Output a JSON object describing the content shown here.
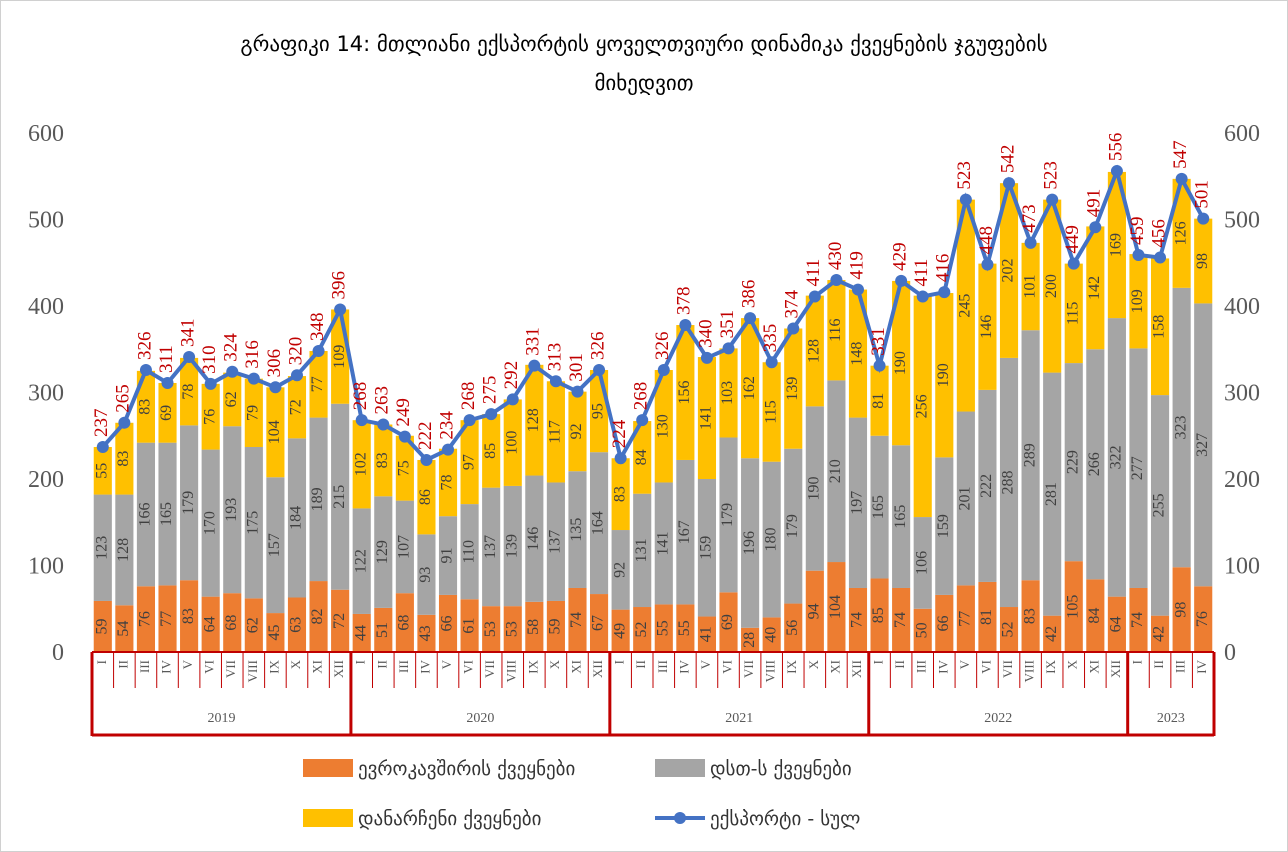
{
  "chart_data": {
    "type": "stacked-bar-line",
    "title": "გრაფიკი 14: მთლიანი ექსპორტის ყოველთვიური დინამიკა ქვეყნების ჯგუფების მიხედვით",
    "groups": [
      {
        "name": "2019",
        "categories": [
          "I",
          "II",
          "III",
          "IV",
          "V",
          "VI",
          "VII",
          "VIII",
          "IX",
          "X",
          "XI",
          "XII"
        ]
      },
      {
        "name": "2020",
        "categories": [
          "I",
          "II",
          "III",
          "IV",
          "V",
          "VI",
          "VII",
          "VIII",
          "IX",
          "X",
          "XI",
          "XII"
        ]
      },
      {
        "name": "2021",
        "categories": [
          "I",
          "II",
          "III",
          "IV",
          "V",
          "VI",
          "VII",
          "VIII",
          "IX",
          "X",
          "XI",
          "XII"
        ]
      },
      {
        "name": "2022",
        "categories": [
          "I",
          "II",
          "III",
          "IV",
          "V",
          "VI",
          "VII",
          "VIII",
          "IX",
          "X",
          "XI",
          "XII"
        ]
      },
      {
        "name": "2023",
        "categories": [
          "I",
          "II",
          "III",
          "IV"
        ]
      }
    ],
    "series": [
      {
        "name": "ევროკავშირის ქვეყნები",
        "color": "#ed7d31",
        "values": [
          59,
          54,
          76,
          77,
          83,
          64,
          68,
          62,
          45,
          63,
          82,
          72,
          44,
          51,
          68,
          43,
          66,
          61,
          53,
          53,
          58,
          59,
          74,
          67,
          49,
          52,
          55,
          55,
          41,
          69,
          28,
          40,
          56,
          94,
          104,
          74,
          85,
          74,
          50,
          66,
          77,
          81,
          52,
          83,
          42,
          105,
          84,
          64,
          74,
          42,
          98,
          76
        ]
      },
      {
        "name": "დსთ-ს ქვეყნები",
        "color": "#a5a5a5",
        "values": [
          123,
          128,
          166,
          165,
          179,
          170,
          193,
          175,
          157,
          184,
          189,
          215,
          122,
          129,
          107,
          93,
          91,
          110,
          137,
          139,
          146,
          137,
          135,
          164,
          92,
          131,
          141,
          167,
          159,
          179,
          196,
          180,
          179,
          190,
          210,
          197,
          165,
          165,
          106,
          159,
          201,
          222,
          288,
          289,
          281,
          229,
          266,
          322,
          277,
          255,
          323,
          327
        ]
      },
      {
        "name": "დანარჩენი ქვეყნები",
        "color": "#ffc000",
        "values": [
          55,
          83,
          83,
          69,
          78,
          76,
          62,
          79,
          104,
          72,
          77,
          109,
          102,
          83,
          75,
          86,
          78,
          97,
          85,
          100,
          128,
          117,
          92,
          95,
          83,
          84,
          130,
          156,
          141,
          103,
          162,
          115,
          139,
          128,
          116,
          148,
          81,
          190,
          256,
          190,
          245,
          146,
          202,
          101,
          200,
          115,
          142,
          169,
          109,
          158,
          126,
          98
        ]
      },
      {
        "name": "ექსპორტი - სულ",
        "color": "#4472c4",
        "line": true,
        "values": [
          237,
          265,
          326,
          311,
          341,
          310,
          324,
          316,
          306,
          320,
          348,
          396,
          268,
          263,
          249,
          222,
          234,
          268,
          275,
          292,
          331,
          313,
          301,
          326,
          224,
          268,
          326,
          378,
          340,
          351,
          386,
          335,
          374,
          411,
          430,
          419,
          331,
          429,
          411,
          416,
          523,
          448,
          542,
          473,
          523,
          449,
          491,
          556,
          459,
          456,
          547,
          501
        ]
      }
    ],
    "ylim": [
      0,
      600
    ],
    "yticks": [
      0,
      100,
      200,
      300,
      400,
      500,
      600
    ],
    "y2lim": [
      0,
      600
    ],
    "y2ticks": [
      0,
      100,
      200,
      300,
      400,
      500,
      600
    ]
  }
}
